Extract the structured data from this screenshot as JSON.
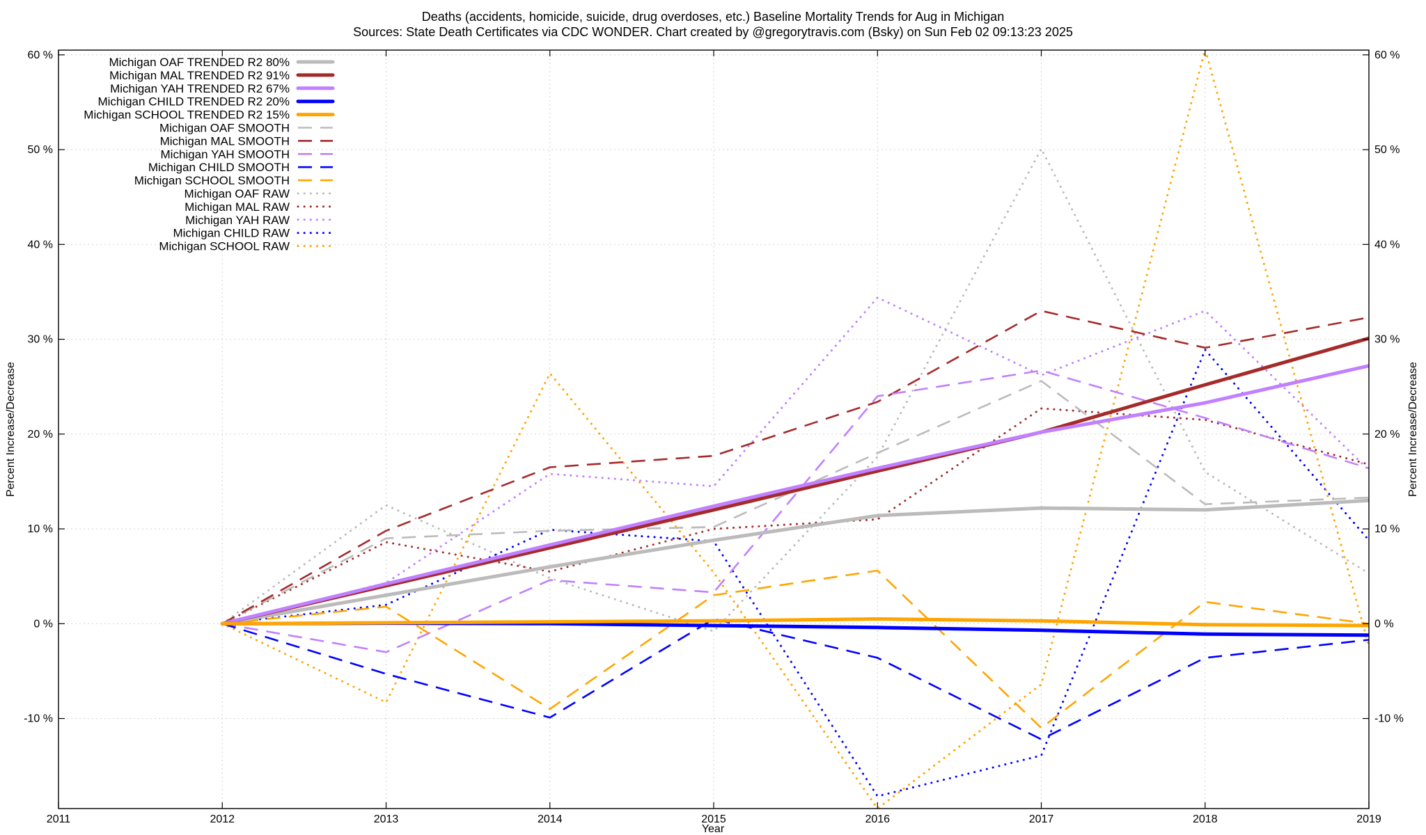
{
  "chart_data": {
    "type": "line",
    "title_lines": [
      "Deaths (accidents, homicide, suicide, drug overdoses, etc.)  Baseline Mortality Trends for Aug in Michigan",
      "Sources: State Death Certificates via CDC WONDER.             Chart created by @gregorytravis.com (Bsky) on Sun Feb 02 09:13:23 2025"
    ],
    "xlabel": "Year",
    "ylabel": "Percent Increase/Decrease",
    "y2label": "Percent Increase/Decrease",
    "xlim": [
      2011,
      2019
    ],
    "ylim": [
      -19.5,
      60.5
    ],
    "x_ticks": [
      "2011",
      "2012",
      "2013",
      "2014",
      "2015",
      "2016",
      "2017",
      "2018",
      "2019"
    ],
    "y_ticks": [
      {
        "value": -10,
        "label": "-10 %"
      },
      {
        "value": 0,
        "label": "0 %"
      },
      {
        "value": 10,
        "label": "10 %"
      },
      {
        "value": 20,
        "label": "20 %"
      },
      {
        "value": 30,
        "label": "30 %"
      },
      {
        "value": 40,
        "label": "40 %"
      },
      {
        "value": 50,
        "label": "50 %"
      },
      {
        "value": 60,
        "label": "60 %"
      }
    ],
    "grid": true,
    "legend_position": "top-left",
    "x": [
      2012,
      2013,
      2014,
      2015,
      2016,
      2017,
      2018,
      2019
    ],
    "series": [
      {
        "name": "Michigan OAF TRENDED R2  80%",
        "color": "#bbbbbb",
        "style": "solid",
        "values": [
          0,
          3.0,
          6.0,
          8.8,
          11.4,
          12.2,
          12.0,
          13.0
        ]
      },
      {
        "name": "Michigan MAL TRENDED R2  91%",
        "color": "#a52a2a",
        "style": "solid",
        "values": [
          0,
          4.0,
          8.0,
          12.0,
          16.1,
          20.2,
          25.2,
          30.1
        ]
      },
      {
        "name": "Michigan YAH TRENDED R2  67%",
        "color": "#c080ff",
        "style": "solid",
        "values": [
          0,
          4.2,
          8.3,
          12.4,
          16.4,
          20.2,
          23.3,
          27.2
        ]
      },
      {
        "name": "Michigan CHILD TRENDED R2  20%",
        "color": "#0000ff",
        "style": "solid",
        "values": [
          0,
          0.05,
          0.0,
          -0.2,
          -0.4,
          -0.7,
          -1.1,
          -1.2
        ]
      },
      {
        "name": "Michigan SCHOOL TRENDED R2  15%",
        "color": "#ffa500",
        "style": "solid",
        "values": [
          0,
          0.1,
          0.2,
          0.3,
          0.5,
          0.3,
          -0.1,
          -0.2
        ]
      },
      {
        "name": "Michigan OAF SMOOTH",
        "color": "#bbbbbb",
        "style": "dashed",
        "values": [
          0,
          9.0,
          9.8,
          10.2,
          18.0,
          25.6,
          12.6,
          13.3
        ]
      },
      {
        "name": "Michigan MAL SMOOTH",
        "color": "#a52a2a",
        "style": "dashed",
        "values": [
          0,
          9.8,
          16.5,
          17.7,
          23.4,
          33.0,
          29.1,
          32.3
        ]
      },
      {
        "name": "Michigan YAH SMOOTH",
        "color": "#c080ff",
        "style": "dashed",
        "values": [
          0,
          -3.0,
          4.6,
          3.3,
          24.0,
          26.7,
          21.7,
          16.4
        ]
      },
      {
        "name": "Michigan CHILD SMOOTH",
        "color": "#0000ff",
        "style": "dashed",
        "values": [
          0,
          -5.3,
          -9.9,
          0.5,
          -3.6,
          -12.2,
          -3.6,
          -1.7
        ]
      },
      {
        "name": "Michigan SCHOOL SMOOTH",
        "color": "#ffa500",
        "style": "dashed",
        "values": [
          0,
          1.8,
          -9.0,
          3.0,
          5.6,
          -11.0,
          2.3,
          0.0
        ]
      },
      {
        "name": "Michigan OAF RAW",
        "color": "#bbbbbb",
        "style": "dotted",
        "values": [
          0,
          12.5,
          4.8,
          -0.8,
          17.6,
          50.1,
          16.0,
          5.3
        ]
      },
      {
        "name": "Michigan MAL RAW",
        "color": "#a52a2a",
        "style": "dotted",
        "values": [
          0,
          8.6,
          5.5,
          10.0,
          11.0,
          22.7,
          21.5,
          16.8
        ]
      },
      {
        "name": "Michigan YAH RAW",
        "color": "#c080ff",
        "style": "dotted",
        "values": [
          0,
          4.3,
          15.8,
          14.5,
          34.4,
          26.2,
          33.0,
          16.2
        ]
      },
      {
        "name": "Michigan CHILD RAW",
        "color": "#0000ff",
        "style": "dotted",
        "values": [
          0,
          2.0,
          9.9,
          8.7,
          -18.2,
          -13.9,
          28.9,
          8.8
        ]
      },
      {
        "name": "Michigan SCHOOL RAW",
        "color": "#ffa500",
        "style": "dotted",
        "values": [
          0,
          -8.3,
          26.4,
          5.4,
          -19.5,
          -6.4,
          60.6,
          -2.4
        ]
      }
    ]
  }
}
